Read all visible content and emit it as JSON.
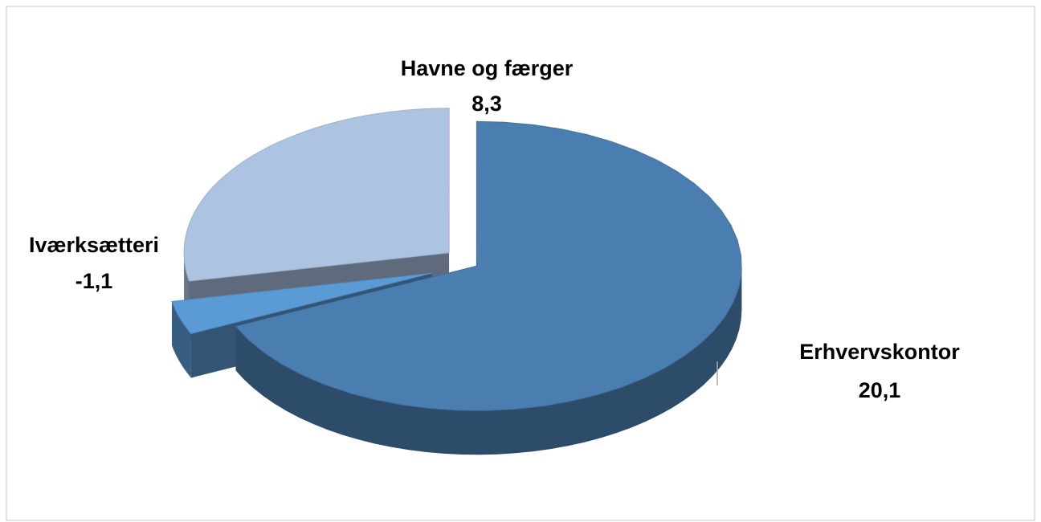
{
  "chart_data": {
    "type": "pie3d",
    "categories": [
      "Erhvervskontor",
      "Iværksætteri",
      "Havne og færger"
    ],
    "values": [
      20.1,
      -1.1,
      8.3
    ],
    "value_labels": [
      "20,1",
      "-1,1",
      "8,3"
    ],
    "colors": [
      "#4a7eb0",
      "#5b9bd5",
      "#adc3e2"
    ]
  }
}
